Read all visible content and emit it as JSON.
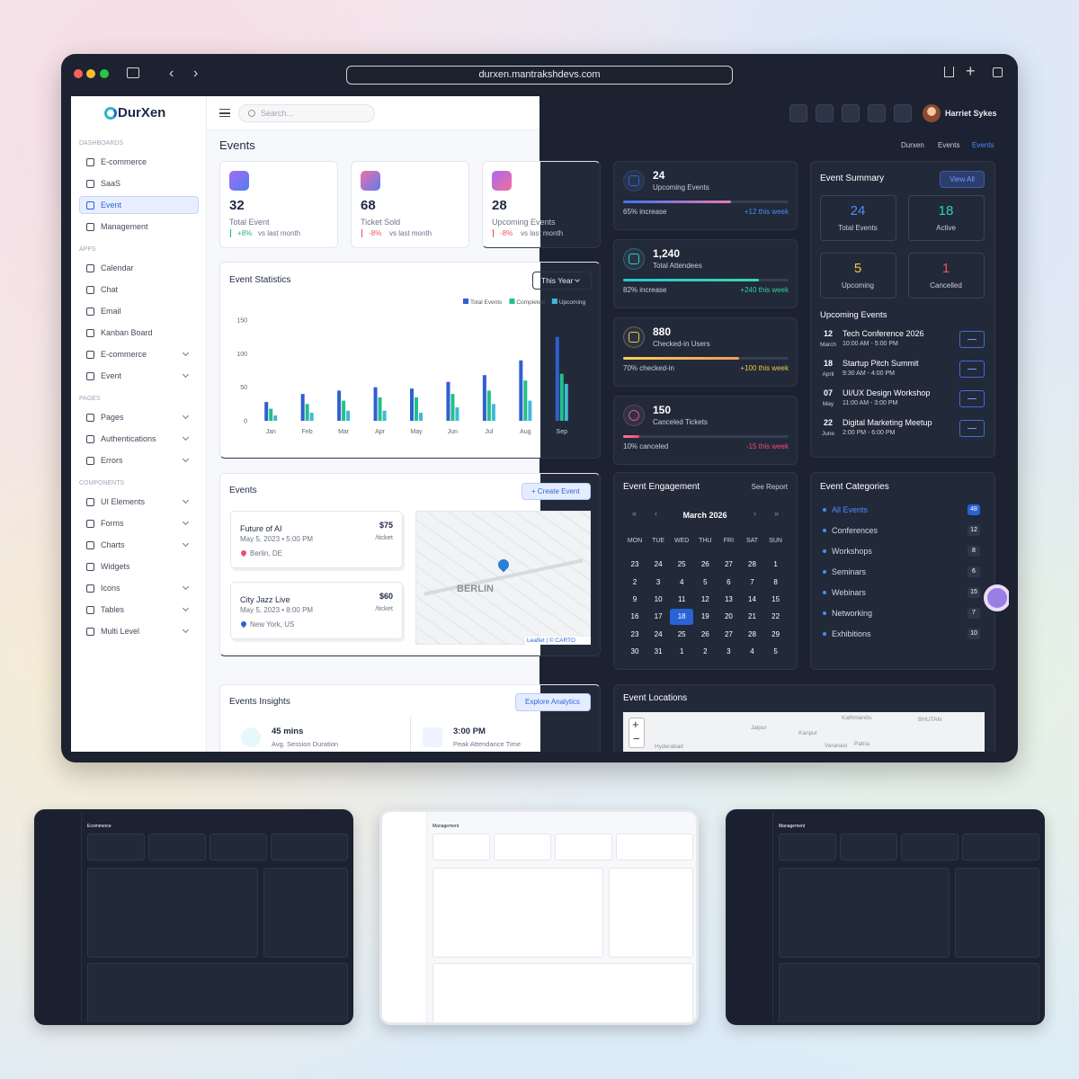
{
  "browser": {
    "url": "durxen.mantrakshdevs.com"
  },
  "brand": "DurXen",
  "search": "Search...",
  "user": "Harriet Sykes",
  "page_title": "Events",
  "breadcrumb": [
    "Durxen",
    "Events",
    "Events"
  ],
  "sidebar": [
    {
      "title": "DASHBOARDS",
      "items": [
        {
          "label": "E-commerce"
        },
        {
          "label": "SaaS"
        },
        {
          "label": "Event",
          "active": true
        },
        {
          "label": "Management"
        }
      ]
    },
    {
      "title": "APPS",
      "items": [
        {
          "label": "Calendar"
        },
        {
          "label": "Chat"
        },
        {
          "label": "Email"
        },
        {
          "label": "Kanban Board"
        },
        {
          "label": "E-commerce",
          "submenu": true
        },
        {
          "label": "Event",
          "submenu": true
        }
      ]
    },
    {
      "title": "PAGES",
      "items": [
        {
          "label": "Pages",
          "submenu": true
        },
        {
          "label": "Authentications",
          "submenu": true
        },
        {
          "label": "Errors",
          "submenu": true
        }
      ]
    },
    {
      "title": "COMPONENTS",
      "items": [
        {
          "label": "UI Elements",
          "submenu": true
        },
        {
          "label": "Forms",
          "submenu": true
        },
        {
          "label": "Charts",
          "submenu": true
        },
        {
          "label": "Widgets"
        },
        {
          "label": "Icons",
          "submenu": true
        },
        {
          "label": "Tables",
          "submenu": true
        },
        {
          "label": "Multi Level",
          "submenu": true
        }
      ]
    }
  ],
  "stat_cards": [
    {
      "value": "32",
      "label": "Total Event",
      "change": "+8%",
      "note": "vs last month",
      "trend": "up"
    },
    {
      "value": "68",
      "label": "Ticket Sold",
      "change": "-8%",
      "note": "vs last month",
      "trend": "down"
    },
    {
      "value": "28",
      "label": "Upcoming Events",
      "change": "-8%",
      "note": "vs last month",
      "trend": "down"
    }
  ],
  "chart_data": {
    "type": "bar",
    "title": "Event Statistics",
    "filter": "This Year",
    "categories": [
      "Jan",
      "Feb",
      "Mar",
      "Apr",
      "May",
      "Jun",
      "Jul",
      "Aug",
      "Sep"
    ],
    "series": [
      {
        "name": "Total Events",
        "color": "#2f5fd0",
        "values": [
          28,
          40,
          45,
          50,
          48,
          58,
          68,
          90,
          125
        ]
      },
      {
        "name": "Completed",
        "color": "#22c08a",
        "values": [
          18,
          25,
          30,
          35,
          35,
          40,
          45,
          60,
          70
        ]
      },
      {
        "name": "Upcoming",
        "color": "#3fb9d9",
        "values": [
          8,
          12,
          15,
          15,
          12,
          20,
          25,
          30,
          55
        ]
      }
    ],
    "ylim": [
      0,
      150
    ],
    "yticks": [
      0,
      50,
      100,
      150
    ],
    "grid": false,
    "legend": "top-right"
  },
  "event_list": {
    "title": "Events",
    "button": "+ Create Event",
    "items": [
      {
        "name": "Future of AI",
        "date": "May 5, 2023 • 5:00 PM",
        "location": "Berlin, DE",
        "price": "$75",
        "unit": "/ticket"
      },
      {
        "name": "City Jazz Live",
        "date": "May 5, 2023 • 8:00 PM",
        "location": "New York, US",
        "price": "$60",
        "unit": "/ticket"
      }
    ],
    "map": {
      "label": "BERLIN",
      "attribution": "Leaflet | © CARTO"
    }
  },
  "insights": {
    "title": "Events Insights",
    "button": "Explore Analytics",
    "items": [
      {
        "value": "45 mins",
        "label": "Avg. Session Duration"
      },
      {
        "value": "3:00 PM",
        "label": "Peak Attendance Time"
      }
    ]
  },
  "kpis": [
    {
      "value": "24",
      "label": "Upcoming Events",
      "left": "65% increase",
      "right": "+12 this week",
      "progress": 65
    },
    {
      "value": "1,240",
      "label": "Total Attendees",
      "left": "82% increase",
      "right": "+240 this week",
      "progress": 82
    },
    {
      "value": "880",
      "label": "Checked-in Users",
      "left": "70% checked-in",
      "right": "+100 this week",
      "progress": 70
    },
    {
      "value": "150",
      "label": "Canceled Tickets",
      "left": "10% canceled",
      "right": "-15 this week",
      "progress": 10
    }
  ],
  "summary": {
    "title": "Event Summary",
    "button": "View All",
    "tiles": [
      {
        "value": "24",
        "label": "Total Events"
      },
      {
        "value": "18",
        "label": "Active"
      },
      {
        "value": "5",
        "label": "Upcoming"
      },
      {
        "value": "1",
        "label": "Cancelled"
      }
    ],
    "upcoming_title": "Upcoming Events",
    "upcoming": [
      {
        "day": "12",
        "month": "March",
        "name": "Tech Conference 2026",
        "time": "10:00 AM - 5:00 PM"
      },
      {
        "day": "18",
        "month": "April",
        "name": "Startup Pitch Summit",
        "time": "9:30 AM - 4:00 PM"
      },
      {
        "day": "07",
        "month": "May",
        "name": "UI/UX Design Workshop",
        "time": "11:00 AM - 3:00 PM"
      },
      {
        "day": "22",
        "month": "June",
        "name": "Digital Marketing Meetup",
        "time": "2:00 PM - 6:00 PM"
      }
    ]
  },
  "engagement": {
    "title": "Event Engagement",
    "link": "See Report",
    "month": "March 2026",
    "today": 18,
    "weekdays": [
      "MON",
      "TUE",
      "WED",
      "THU",
      "FRI",
      "SAT",
      "SUN"
    ],
    "days": [
      [
        23,
        24,
        25,
        26,
        27,
        28,
        1
      ],
      [
        2,
        3,
        4,
        5,
        6,
        7,
        8
      ],
      [
        9,
        10,
        11,
        12,
        13,
        14,
        15
      ],
      [
        16,
        17,
        18,
        19,
        20,
        21,
        22
      ],
      [
        23,
        24,
        25,
        26,
        27,
        28,
        29
      ],
      [
        30,
        31,
        1,
        2,
        3,
        4,
        5
      ]
    ]
  },
  "categories": {
    "title": "Event Categories",
    "items": [
      {
        "name": "All Events",
        "count": 48
      },
      {
        "name": "Conferences",
        "count": 12
      },
      {
        "name": "Workshops",
        "count": 8
      },
      {
        "name": "Seminars",
        "count": 6
      },
      {
        "name": "Webinars",
        "count": 15
      },
      {
        "name": "Networking",
        "count": 7
      },
      {
        "name": "Exhibitions",
        "count": 10
      }
    ]
  },
  "locations": {
    "title": "Event Locations",
    "labels": [
      "Jaipur",
      "Kathmandu",
      "BHUTAN",
      "Kanpur",
      "Varanasi",
      "Patna",
      "Hyderabad"
    ]
  },
  "thumbnails": [
    {
      "title": "Ecommerce",
      "theme": "dark"
    },
    {
      "title": "Management",
      "theme": "light"
    },
    {
      "title": "Management",
      "theme": "dark"
    }
  ]
}
